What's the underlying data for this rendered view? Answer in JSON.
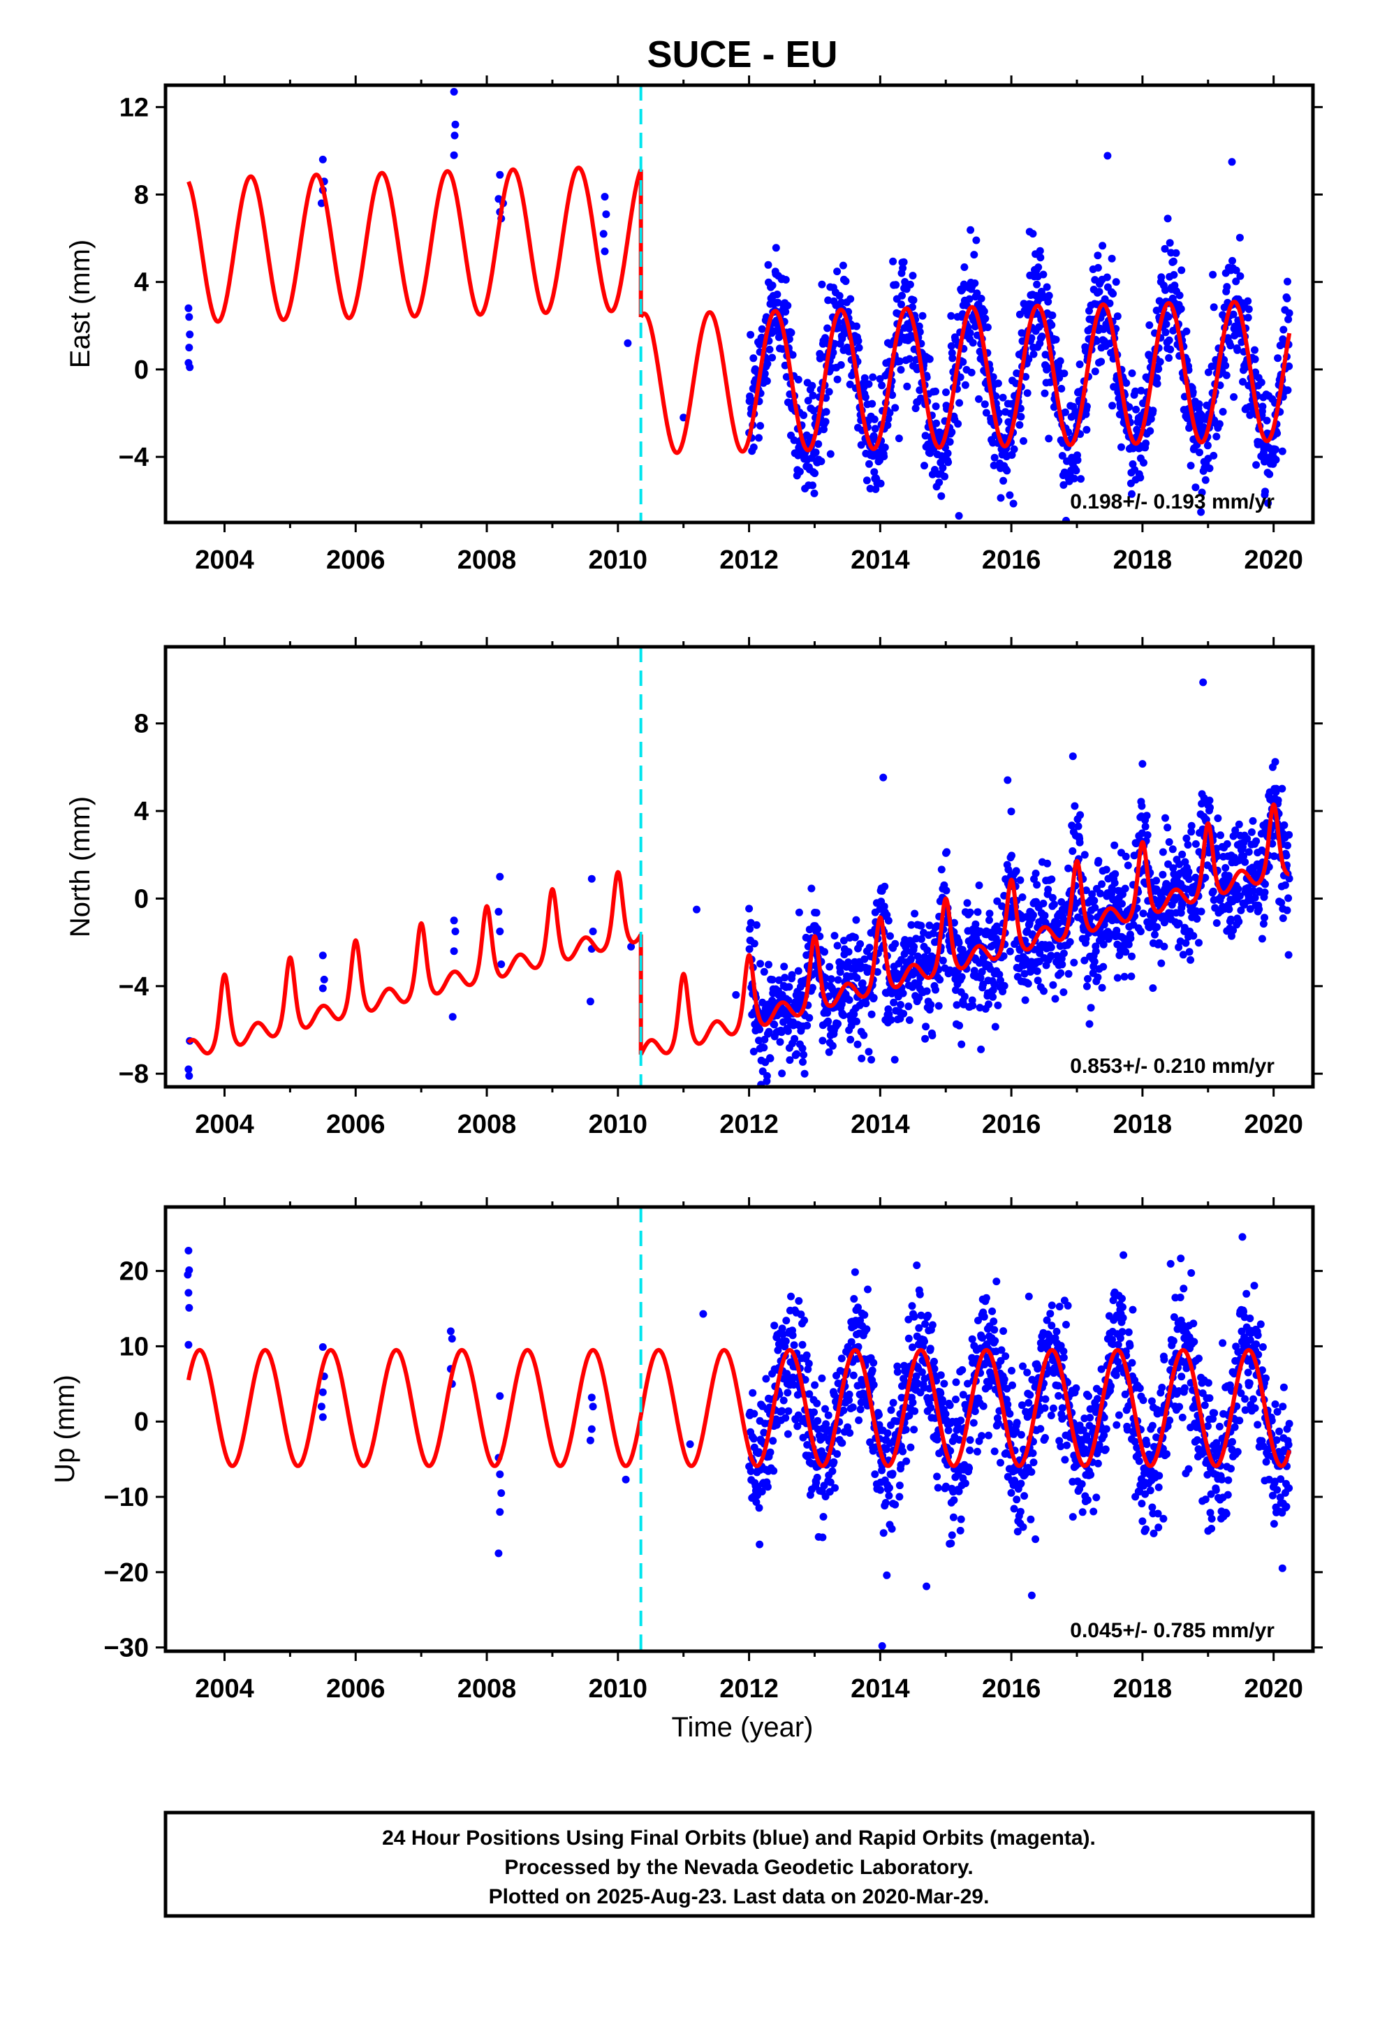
{
  "chart_data": {
    "title": "SUCE - EU",
    "xlabel": "Time (year)",
    "x_ticks": [
      2004,
      2006,
      2008,
      2010,
      2012,
      2014,
      2016,
      2018,
      2020
    ],
    "xlim": [
      2003.1,
      2020.6
    ],
    "offset_epoch": 2010.35,
    "offset_line_color": "#00e5ee",
    "point_color": "#0000ff",
    "model_color": "#ff0000",
    "data_span": [
      2003.45,
      2020.24
    ],
    "panels": [
      {
        "name": "east",
        "type": "scatter",
        "ylabel": "East (mm)",
        "ylim": [
          -7,
          13
        ],
        "y_ticks": [
          12,
          8,
          4,
          0,
          -4
        ],
        "y_tick_labels": [
          "12",
          "8",
          "4",
          "0",
          "−4"
        ],
        "rate": "0.198+/- 0.193 mm/yr",
        "model_segments": [
          {
            "x0": 2003.45,
            "x1": 2010.35,
            "y0": 5.45,
            "slope": 0.08,
            "amp": 3.3,
            "peak": 0.4
          },
          {
            "x0": 2010.35,
            "x1": 2020.24,
            "y0": -0.65,
            "slope": 0.06,
            "amp": 3.2,
            "peak": 0.4
          }
        ],
        "points": [
          [
            2003.45,
            2.8
          ],
          [
            2003.46,
            2.4
          ],
          [
            2003.47,
            1.6
          ],
          [
            2003.46,
            1.0
          ],
          [
            2003.45,
            0.3
          ],
          [
            2003.47,
            0.1
          ],
          [
            2005.5,
            9.6
          ],
          [
            2005.52,
            8.6
          ],
          [
            2005.5,
            8.2
          ],
          [
            2005.48,
            7.6
          ],
          [
            2007.5,
            12.7
          ],
          [
            2007.52,
            11.2
          ],
          [
            2007.51,
            10.7
          ],
          [
            2007.5,
            9.8
          ],
          [
            2008.2,
            8.9
          ],
          [
            2008.18,
            7.8
          ],
          [
            2008.2,
            7.2
          ],
          [
            2008.22,
            6.9
          ],
          [
            2008.25,
            7.6
          ],
          [
            2009.8,
            7.9
          ],
          [
            2009.82,
            7.1
          ],
          [
            2009.78,
            6.2
          ],
          [
            2009.8,
            5.4
          ],
          [
            2010.15,
            1.2
          ],
          [
            2011.0,
            -2.2
          ]
        ]
      },
      {
        "name": "north",
        "type": "scatter",
        "ylabel": "North (mm)",
        "ylim": [
          -8.6,
          11.5
        ],
        "y_ticks": [
          8,
          4,
          0,
          -4,
          -8
        ],
        "y_tick_labels": [
          "8",
          "4",
          "0",
          "−4",
          "−8"
        ],
        "rate": "0.853+/- 0.210 mm/yr",
        "model_segments": [
          {
            "x0": 2003.45,
            "x1": 2010.35,
            "y0": -6.3,
            "slope": 0.78,
            "amp": 2.0,
            "peak": 0.0
          },
          {
            "x0": 2010.35,
            "x1": 2020.24,
            "y0": -6.4,
            "slope": 0.86,
            "amp": 2.0,
            "peak": 0.0
          }
        ],
        "points": [
          [
            2003.47,
            -6.5
          ],
          [
            2003.45,
            -7.8
          ],
          [
            2003.46,
            -8.1
          ],
          [
            2005.5,
            -2.6
          ],
          [
            2005.52,
            -3.7
          ],
          [
            2005.5,
            -4.1
          ],
          [
            2007.5,
            -1.0
          ],
          [
            2007.52,
            -1.5
          ],
          [
            2007.5,
            -2.4
          ],
          [
            2007.48,
            -5.4
          ],
          [
            2008.2,
            1.0
          ],
          [
            2008.18,
            -0.6
          ],
          [
            2008.2,
            -1.5
          ],
          [
            2008.22,
            -3.0
          ],
          [
            2009.6,
            0.9
          ],
          [
            2009.62,
            -1.5
          ],
          [
            2009.6,
            -2.3
          ],
          [
            2009.58,
            -4.7
          ],
          [
            2010.2,
            -2.2
          ],
          [
            2011.2,
            -0.5
          ],
          [
            2011.8,
            -4.4
          ]
        ]
      },
      {
        "name": "up",
        "type": "scatter",
        "ylabel": "Up (mm)",
        "ylim": [
          -30.5,
          28.5
        ],
        "y_ticks": [
          20,
          10,
          0,
          -10,
          -20,
          -30
        ],
        "y_tick_labels": [
          "20",
          "10",
          "0",
          "−10",
          "−20",
          "−30"
        ],
        "rate": "0.045+/- 0.785 mm/yr",
        "model_segments": [
          {
            "x0": 2003.45,
            "x1": 2010.35,
            "y0": 1.8,
            "slope": 0.0,
            "amp": 7.7,
            "peak": 0.62
          },
          {
            "x0": 2010.35,
            "x1": 2020.24,
            "y0": 1.8,
            "slope": 0.0,
            "amp": 7.7,
            "peak": 0.62
          }
        ],
        "points": [
          [
            2003.45,
            22.7
          ],
          [
            2003.46,
            20.1
          ],
          [
            2003.44,
            19.5
          ],
          [
            2003.45,
            17.1
          ],
          [
            2003.46,
            15.1
          ],
          [
            2003.45,
            10.2
          ],
          [
            2005.5,
            9.9
          ],
          [
            2005.52,
            6.0
          ],
          [
            2005.5,
            3.9
          ],
          [
            2005.48,
            2.0
          ],
          [
            2005.5,
            0.6
          ],
          [
            2007.45,
            12.0
          ],
          [
            2007.47,
            11.0
          ],
          [
            2007.45,
            7.0
          ],
          [
            2007.47,
            5.0
          ],
          [
            2008.2,
            3.4
          ],
          [
            2008.18,
            -4.8
          ],
          [
            2008.2,
            -7.0
          ],
          [
            2008.22,
            -9.5
          ],
          [
            2008.2,
            -12.0
          ],
          [
            2008.18,
            -17.5
          ],
          [
            2009.6,
            3.2
          ],
          [
            2009.62,
            2.0
          ],
          [
            2009.6,
            -1.0
          ],
          [
            2009.58,
            -2.5
          ],
          [
            2010.12,
            -7.7
          ],
          [
            2011.1,
            -3.0
          ],
          [
            2011.3,
            14.3
          ],
          [
            2014.03,
            -29.8
          ]
        ]
      }
    ]
  },
  "footer": {
    "line1": "24 Hour Positions Using Final Orbits (blue) and Rapid Orbits (magenta).",
    "line2": "Processed by the Nevada Geodetic Laboratory.",
    "line3": "Plotted on 2025-Aug-23. Last data on 2020-Mar-29."
  }
}
